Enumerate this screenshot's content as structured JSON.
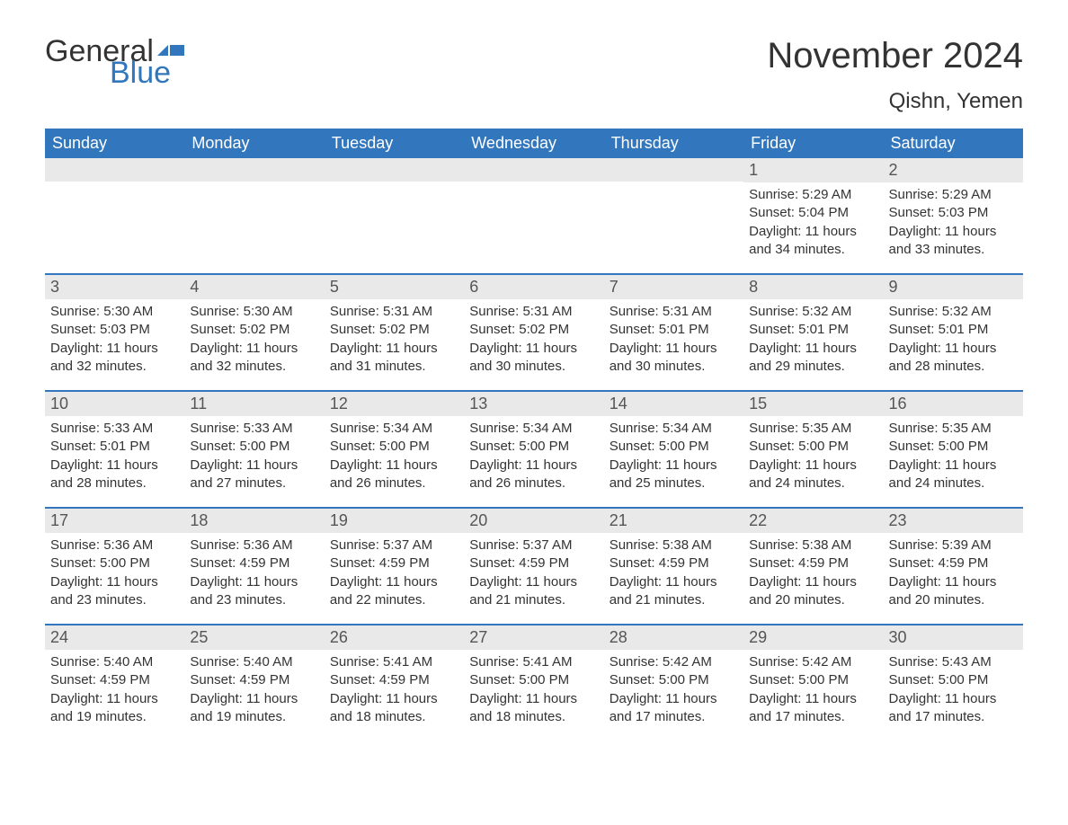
{
  "logo": {
    "general_text": "General",
    "blue_text": "Blue",
    "flag_fill": "#3277bd"
  },
  "title": "November 2024",
  "location": "Qishn, Yemen",
  "header_bg": "#3277bd",
  "header_fg": "#ffffff",
  "row_divider_color": "#3277bd",
  "daynum_bg": "#e9e9e9",
  "text_color": "#333333",
  "day_names": [
    "Sunday",
    "Monday",
    "Tuesday",
    "Wednesday",
    "Thursday",
    "Friday",
    "Saturday"
  ],
  "weeks": [
    [
      {
        "empty": true
      },
      {
        "empty": true
      },
      {
        "empty": true
      },
      {
        "empty": true
      },
      {
        "empty": true
      },
      {
        "day": 1,
        "sunrise": "5:29 AM",
        "sunset": "5:04 PM",
        "daylight": "11 hours and 34 minutes."
      },
      {
        "day": 2,
        "sunrise": "5:29 AM",
        "sunset": "5:03 PM",
        "daylight": "11 hours and 33 minutes."
      }
    ],
    [
      {
        "day": 3,
        "sunrise": "5:30 AM",
        "sunset": "5:03 PM",
        "daylight": "11 hours and 32 minutes."
      },
      {
        "day": 4,
        "sunrise": "5:30 AM",
        "sunset": "5:02 PM",
        "daylight": "11 hours and 32 minutes."
      },
      {
        "day": 5,
        "sunrise": "5:31 AM",
        "sunset": "5:02 PM",
        "daylight": "11 hours and 31 minutes."
      },
      {
        "day": 6,
        "sunrise": "5:31 AM",
        "sunset": "5:02 PM",
        "daylight": "11 hours and 30 minutes."
      },
      {
        "day": 7,
        "sunrise": "5:31 AM",
        "sunset": "5:01 PM",
        "daylight": "11 hours and 30 minutes."
      },
      {
        "day": 8,
        "sunrise": "5:32 AM",
        "sunset": "5:01 PM",
        "daylight": "11 hours and 29 minutes."
      },
      {
        "day": 9,
        "sunrise": "5:32 AM",
        "sunset": "5:01 PM",
        "daylight": "11 hours and 28 minutes."
      }
    ],
    [
      {
        "day": 10,
        "sunrise": "5:33 AM",
        "sunset": "5:01 PM",
        "daylight": "11 hours and 28 minutes."
      },
      {
        "day": 11,
        "sunrise": "5:33 AM",
        "sunset": "5:00 PM",
        "daylight": "11 hours and 27 minutes."
      },
      {
        "day": 12,
        "sunrise": "5:34 AM",
        "sunset": "5:00 PM",
        "daylight": "11 hours and 26 minutes."
      },
      {
        "day": 13,
        "sunrise": "5:34 AM",
        "sunset": "5:00 PM",
        "daylight": "11 hours and 26 minutes."
      },
      {
        "day": 14,
        "sunrise": "5:34 AM",
        "sunset": "5:00 PM",
        "daylight": "11 hours and 25 minutes."
      },
      {
        "day": 15,
        "sunrise": "5:35 AM",
        "sunset": "5:00 PM",
        "daylight": "11 hours and 24 minutes."
      },
      {
        "day": 16,
        "sunrise": "5:35 AM",
        "sunset": "5:00 PM",
        "daylight": "11 hours and 24 minutes."
      }
    ],
    [
      {
        "day": 17,
        "sunrise": "5:36 AM",
        "sunset": "5:00 PM",
        "daylight": "11 hours and 23 minutes."
      },
      {
        "day": 18,
        "sunrise": "5:36 AM",
        "sunset": "4:59 PM",
        "daylight": "11 hours and 23 minutes."
      },
      {
        "day": 19,
        "sunrise": "5:37 AM",
        "sunset": "4:59 PM",
        "daylight": "11 hours and 22 minutes."
      },
      {
        "day": 20,
        "sunrise": "5:37 AM",
        "sunset": "4:59 PM",
        "daylight": "11 hours and 21 minutes."
      },
      {
        "day": 21,
        "sunrise": "5:38 AM",
        "sunset": "4:59 PM",
        "daylight": "11 hours and 21 minutes."
      },
      {
        "day": 22,
        "sunrise": "5:38 AM",
        "sunset": "4:59 PM",
        "daylight": "11 hours and 20 minutes."
      },
      {
        "day": 23,
        "sunrise": "5:39 AM",
        "sunset": "4:59 PM",
        "daylight": "11 hours and 20 minutes."
      }
    ],
    [
      {
        "day": 24,
        "sunrise": "5:40 AM",
        "sunset": "4:59 PM",
        "daylight": "11 hours and 19 minutes."
      },
      {
        "day": 25,
        "sunrise": "5:40 AM",
        "sunset": "4:59 PM",
        "daylight": "11 hours and 19 minutes."
      },
      {
        "day": 26,
        "sunrise": "5:41 AM",
        "sunset": "4:59 PM",
        "daylight": "11 hours and 18 minutes."
      },
      {
        "day": 27,
        "sunrise": "5:41 AM",
        "sunset": "5:00 PM",
        "daylight": "11 hours and 18 minutes."
      },
      {
        "day": 28,
        "sunrise": "5:42 AM",
        "sunset": "5:00 PM",
        "daylight": "11 hours and 17 minutes."
      },
      {
        "day": 29,
        "sunrise": "5:42 AM",
        "sunset": "5:00 PM",
        "daylight": "11 hours and 17 minutes."
      },
      {
        "day": 30,
        "sunrise": "5:43 AM",
        "sunset": "5:00 PM",
        "daylight": "11 hours and 17 minutes."
      }
    ]
  ],
  "labels": {
    "sunrise_prefix": "Sunrise: ",
    "sunset_prefix": "Sunset: ",
    "daylight_prefix": "Daylight: "
  }
}
